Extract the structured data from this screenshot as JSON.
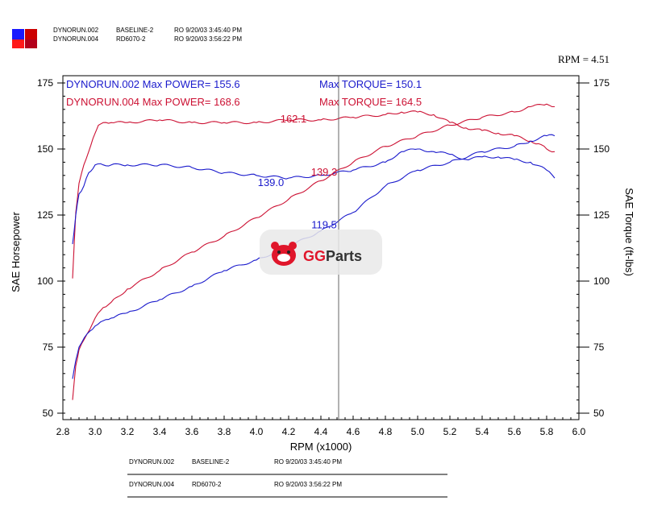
{
  "header": {
    "icon_colors": [
      "#1a1aff",
      "#cc0000",
      "#ff1a1a",
      "#b3001b"
    ],
    "rows": [
      {
        "name": "DYNORUN.002",
        "desc": "BASELINE-2",
        "stamp": "RO 9/20/03 3:45:40 PM"
      },
      {
        "name": "DYNORUN.004",
        "desc": "RD6070-2",
        "stamp": "RO 9/20/03 3:56:22 PM"
      }
    ]
  },
  "cursor": {
    "label": "RPM = 4.51",
    "rpm": 4.51
  },
  "watermark": {
    "text": "GGParts",
    "icon": "gg-mascot-icon"
  },
  "footer": {
    "rows": [
      {
        "name": "DYNORUN.002",
        "desc": "BASELINE-2",
        "stamp": "RO 9/20/03 3:45:40 PM"
      },
      {
        "name": "DYNORUN.004",
        "desc": "RD6070-2",
        "stamp": "RO 9/20/03 3:56:22 PM"
      }
    ]
  },
  "chart_data": {
    "type": "line",
    "xlabel": "RPM (x1000)",
    "ylabel": "SAE Horsepower",
    "y2label": "SAE Torque (ft-lbs)",
    "xlim": [
      2.8,
      6.0
    ],
    "ylim": [
      50,
      175
    ],
    "y2lim": [
      50,
      175
    ],
    "xticks": [
      "2.8",
      "3.0",
      "3.2",
      "3.4",
      "3.6",
      "3.8",
      "4.0",
      "4.2",
      "4.4",
      "4.6",
      "4.8",
      "5.0",
      "5.2",
      "5.4",
      "5.6",
      "5.8",
      "6.0"
    ],
    "yticks": [
      "50",
      "75",
      "100",
      "125",
      "150",
      "175"
    ],
    "y2ticks": [
      "50",
      "75",
      "100",
      "125",
      "150",
      "175"
    ],
    "grid": false,
    "legend": [
      {
        "text": "DYNORUN.002  Max POWER= 155.6",
        "torque_text": "Max TORQUE= 150.1",
        "color": "#1a1acc"
      },
      {
        "text": "DYNORUN.004  Max POWER= 168.6",
        "torque_text": "Max TORQUE= 164.5",
        "color": "#cc1133"
      }
    ],
    "annotations": [
      {
        "text": "162.1",
        "x": 4.23,
        "y": 160,
        "color": "#cc1133"
      },
      {
        "text": "139.3",
        "x": 4.42,
        "y": 140,
        "color": "#cc1133"
      },
      {
        "text": "139.0",
        "x": 4.09,
        "y": 136,
        "color": "#1a1acc"
      },
      {
        "text": "119.5",
        "x": 4.42,
        "y": 120,
        "color": "#1a1acc"
      }
    ],
    "series": [
      {
        "name": "DYNORUN.004 Torque",
        "color": "#cc1133",
        "x": [
          2.86,
          2.88,
          2.9,
          2.93,
          2.96,
          3.0,
          3.02,
          3.05,
          3.1,
          3.2,
          3.4,
          3.6,
          3.8,
          4.0,
          4.2,
          4.4,
          4.6,
          4.8,
          4.9,
          5.0,
          5.1,
          5.2,
          5.3,
          5.4,
          5.5,
          5.6,
          5.7,
          5.75,
          5.8,
          5.85
        ],
        "y": [
          101,
          126,
          137,
          144,
          149,
          156,
          159,
          160,
          160,
          160,
          161,
          160,
          160,
          160,
          161,
          161,
          162,
          163,
          164,
          164,
          163,
          160,
          158,
          157,
          156,
          155,
          153,
          152,
          150,
          149
        ]
      },
      {
        "name": "DYNORUN.002 Torque",
        "color": "#1a1acc",
        "x": [
          2.86,
          2.88,
          2.9,
          2.93,
          2.96,
          3.0,
          3.05,
          3.1,
          3.2,
          3.4,
          3.6,
          3.8,
          4.0,
          4.2,
          4.4,
          4.6,
          4.8,
          4.9,
          5.0,
          5.1,
          5.2,
          5.3,
          5.4,
          5.5,
          5.6,
          5.7,
          5.8,
          5.85
        ],
        "y": [
          114,
          125,
          133,
          136,
          141,
          144,
          144,
          144,
          144,
          144,
          143,
          141,
          140,
          139,
          140,
          142,
          145,
          149,
          150,
          149,
          148,
          146,
          147,
          147,
          146,
          145,
          142,
          139
        ]
      },
      {
        "name": "DYNORUN.004 Power",
        "color": "#cc1133",
        "x": [
          2.86,
          2.88,
          2.9,
          2.95,
          3.0,
          3.05,
          3.1,
          3.2,
          3.4,
          3.6,
          3.8,
          4.0,
          4.2,
          4.4,
          4.6,
          4.8,
          5.0,
          5.2,
          5.4,
          5.6,
          5.7,
          5.8,
          5.85
        ],
        "y": [
          55,
          68,
          74,
          80,
          86,
          90,
          92,
          97,
          104,
          111,
          117,
          124,
          131,
          138,
          145,
          151,
          155,
          159,
          162,
          164,
          166,
          167,
          166
        ]
      },
      {
        "name": "DYNORUN.002 Power",
        "color": "#1a1acc",
        "x": [
          2.86,
          2.88,
          2.9,
          2.95,
          3.0,
          3.05,
          3.1,
          3.2,
          3.4,
          3.6,
          3.8,
          4.0,
          4.2,
          4.4,
          4.6,
          4.8,
          5.0,
          5.2,
          5.4,
          5.6,
          5.7,
          5.8,
          5.85
        ],
        "y": [
          63,
          70,
          75,
          80,
          83,
          85,
          86,
          88,
          93,
          98,
          104,
          108,
          113,
          119,
          126,
          136,
          142,
          145,
          149,
          151,
          153,
          155,
          155
        ]
      }
    ]
  }
}
